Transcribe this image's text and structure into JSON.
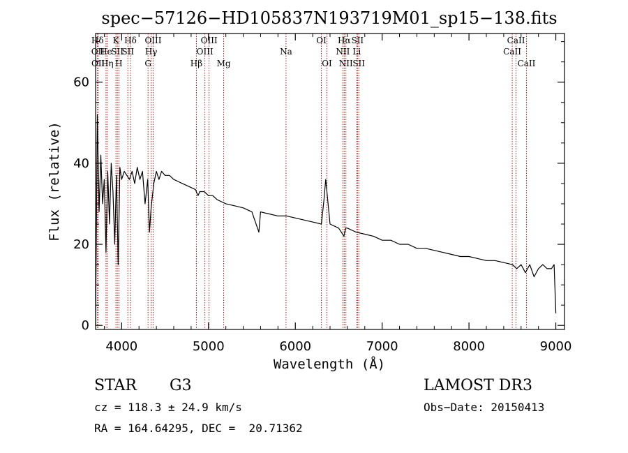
{
  "chart_data": {
    "type": "line",
    "title": "spec−57126−HD105837N193719M01_sp15−138.fits",
    "xlabel": "Wavelength (Å)",
    "ylabel": "Flux (relative)",
    "xlim": [
      3700,
      9100
    ],
    "ylim": [
      -1,
      72
    ],
    "xticks": [
      4000,
      5000,
      6000,
      7000,
      8000,
      9000
    ],
    "yticks": [
      0,
      20,
      40,
      60
    ],
    "series": [
      {
        "name": "spectrum",
        "x": [
          3700,
          3720,
          3740,
          3760,
          3780,
          3800,
          3820,
          3840,
          3860,
          3880,
          3900,
          3920,
          3940,
          3960,
          3980,
          4000,
          4030,
          4060,
          4090,
          4120,
          4150,
          4180,
          4210,
          4240,
          4270,
          4300,
          4320,
          4340,
          4370,
          4400,
          4430,
          4460,
          4500,
          4550,
          4600,
          4650,
          4700,
          4750,
          4800,
          4850,
          4880,
          4900,
          4950,
          5000,
          5050,
          5100,
          5150,
          5200,
          5300,
          5400,
          5500,
          5580,
          5600,
          5700,
          5800,
          5900,
          6000,
          6100,
          6200,
          6300,
          6330,
          6350,
          6400,
          6500,
          6560,
          6580,
          6600,
          6700,
          6800,
          6900,
          7000,
          7100,
          7200,
          7300,
          7400,
          7500,
          7600,
          7700,
          7800,
          7900,
          8000,
          8100,
          8200,
          8300,
          8400,
          8500,
          8550,
          8600,
          8650,
          8700,
          8750,
          8800,
          8850,
          8900,
          8950,
          8980,
          9000
        ],
        "y": [
          0,
          52,
          28,
          42,
          30,
          36,
          18,
          38,
          25,
          40,
          33,
          20,
          37,
          15,
          39,
          36,
          38,
          37,
          36,
          38,
          35,
          39,
          36,
          38,
          30,
          36,
          23,
          29,
          35,
          38,
          36,
          38,
          37,
          37,
          36,
          35.5,
          35,
          34.5,
          34,
          33.5,
          32,
          33,
          33,
          32,
          32,
          31,
          30.5,
          30,
          29.5,
          29,
          28,
          23,
          28,
          27.5,
          27,
          27,
          26.5,
          26,
          25.5,
          25,
          31,
          36,
          25,
          24,
          22,
          24,
          24,
          23,
          22.5,
          22,
          21,
          21,
          20,
          20,
          19,
          19,
          18.5,
          18,
          17.5,
          17,
          17,
          16.5,
          16,
          16,
          15.5,
          15,
          14,
          15,
          13,
          15,
          12,
          14,
          15,
          14,
          14,
          15,
          3
        ]
      }
    ],
    "spectral_lines": [
      {
        "label": "Hδ",
        "x": 3722,
        "row": 1
      },
      {
        "label": "OII",
        "x": 3727,
        "row": 2
      },
      {
        "label": "OII",
        "x": 3729,
        "row": 3
      },
      {
        "label": "He",
        "x": 3820,
        "row": 2
      },
      {
        "label": "Hη",
        "x": 3835,
        "row": 3
      },
      {
        "label": "K",
        "x": 3934,
        "row": 1
      },
      {
        "label": "SII",
        "x": 3950,
        "row": 2
      },
      {
        "label": "H",
        "x": 3968,
        "row": 3
      },
      {
        "label": "Hδ",
        "x": 4102,
        "row": 1
      },
      {
        "label": "SII",
        "x": 4072,
        "row": 2
      },
      {
        "label": "OIII",
        "x": 4363,
        "row": 1
      },
      {
        "label": "Hγ",
        "x": 4340,
        "row": 2
      },
      {
        "label": "G",
        "x": 4304,
        "row": 3
      },
      {
        "label": "Hβ",
        "x": 4861,
        "row": 3
      },
      {
        "label": "OIII",
        "x": 5007,
        "row": 1
      },
      {
        "label": "OIII",
        "x": 4959,
        "row": 2
      },
      {
        "label": "Mg",
        "x": 5175,
        "row": 3
      },
      {
        "label": "Na",
        "x": 5893,
        "row": 2
      },
      {
        "label": "OI",
        "x": 6300,
        "row": 1
      },
      {
        "label": "OI",
        "x": 6364,
        "row": 3
      },
      {
        "label": "Hα",
        "x": 6563,
        "row": 1
      },
      {
        "label": "NII",
        "x": 6548,
        "row": 2
      },
      {
        "label": "NII",
        "x": 6583,
        "row": 3
      },
      {
        "label": "SII",
        "x": 6716,
        "row": 1
      },
      {
        "label": "Li",
        "x": 6708,
        "row": 2
      },
      {
        "label": "SII",
        "x": 6731,
        "row": 3
      },
      {
        "label": "CaII",
        "x": 8542,
        "row": 1
      },
      {
        "label": "CaII",
        "x": 8498,
        "row": 2
      },
      {
        "label": "CaII",
        "x": 8662,
        "row": 3
      }
    ],
    "line_color": "#aa0000",
    "spectrum_color": "#000000"
  },
  "info": {
    "class": "STAR",
    "subclass": "G3",
    "survey": "LAMOST DR3",
    "redshift": "cz = 118.3 ± 24.9 km/s",
    "obs_date": "Obs−Date: 20150413",
    "coords": "RA = 164.64295, DEC =  20.71362"
  }
}
